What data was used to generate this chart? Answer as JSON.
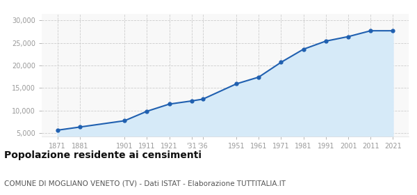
{
  "years": [
    1871,
    1881,
    1901,
    1911,
    1921,
    1931,
    1936,
    1951,
    1961,
    1971,
    1981,
    1991,
    2001,
    2011,
    2021
  ],
  "population": [
    5600,
    6300,
    7700,
    9800,
    11400,
    12100,
    12500,
    15900,
    17400,
    20700,
    23600,
    25400,
    26400,
    27700,
    27700
  ],
  "x_tick_labels": [
    "1871",
    "1881",
    "1901",
    "1911",
    "1921",
    "'31",
    "'36",
    "1951",
    "1961",
    "1971",
    "1981",
    "1991",
    "2001",
    "2011",
    "2021"
  ],
  "y_ticks": [
    5000,
    10000,
    15000,
    20000,
    25000,
    30000
  ],
  "ylim": [
    4200,
    31500
  ],
  "xlim": [
    1864,
    2028
  ],
  "line_color": "#2060b0",
  "fill_color": "#d6eaf8",
  "marker_color": "#2060b0",
  "bg_color": "#ffffff",
  "plot_bg_color": "#f8f8f8",
  "grid_color": "#cccccc",
  "title": "Popolazione residente ai censimenti",
  "subtitle": "COMUNE DI MOGLIANO VENETO (TV) - Dati ISTAT - Elaborazione TUTTITALIA.IT",
  "title_fontsize": 10,
  "subtitle_fontsize": 7.5,
  "tick_color": "#999999",
  "xtick_label_color": "#2060b0",
  "ytick_label_color": "#999999"
}
